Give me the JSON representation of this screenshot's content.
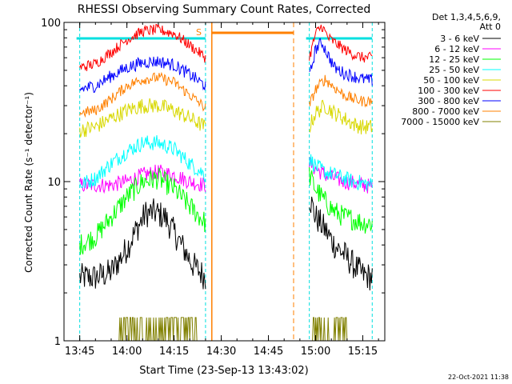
{
  "chart_data": {
    "type": "line",
    "title": "RHESSI Observing Summary Count Rates, Corrected",
    "xlabel": "Start Time (23-Sep-13 13:43:02)",
    "ylabel": "Corrected Count Rate (s⁻¹ detector⁻¹)",
    "y_scale": "log",
    "ylim": [
      1,
      100
    ],
    "xlim": [
      "13:40",
      "15:22"
    ],
    "x_ticks": [
      "13:45",
      "14:00",
      "14:15",
      "14:30",
      "14:45",
      "15:00",
      "15:15"
    ],
    "y_ticks": [
      "1",
      "10",
      "100"
    ],
    "legend_header": [
      "Det 1,3,4,5,6,9,",
      "Att 0"
    ],
    "legend_position": "top-right",
    "annotation_s": "S",
    "footer_date": "22-Oct-2021 11:38",
    "orbit_segments": [
      [
        "13:45",
        "14:25"
      ],
      [
        "14:58",
        "15:18"
      ]
    ],
    "series": [
      {
        "name": "3 - 6 keV",
        "color": "#000000",
        "x": [
          "13:45",
          "13:50",
          "13:55",
          "14:00",
          "14:03",
          "14:06",
          "14:09",
          "14:12",
          "14:15",
          "14:18",
          "14:21",
          "14:25",
          "14:58",
          "15:00",
          "15:03",
          "15:06",
          "15:09",
          "15:12",
          "15:15",
          "15:18"
        ],
        "y": [
          2.5,
          2.5,
          2.7,
          3.8,
          5,
          6.3,
          6.4,
          6,
          4.8,
          3.8,
          3,
          2.5,
          8,
          6,
          5,
          4,
          3.5,
          3,
          2.6,
          2.5
        ]
      },
      {
        "name": "6 - 12 keV",
        "color": "#ff00ff",
        "x": [
          "13:45",
          "13:55",
          "14:00",
          "14:05",
          "14:10",
          "14:15",
          "14:20",
          "14:25",
          "14:58",
          "15:00",
          "15:03",
          "15:06",
          "15:09",
          "15:12",
          "15:15",
          "15:18"
        ],
        "y": [
          9.5,
          9.5,
          10,
          11,
          11.5,
          11,
          10,
          9.5,
          13,
          12,
          11,
          10.5,
          10,
          9.8,
          9.5,
          9.3
        ]
      },
      {
        "name": "12 - 25 keV",
        "color": "#00ff00",
        "x": [
          "13:45",
          "13:50",
          "13:55",
          "14:00",
          "14:05",
          "14:10",
          "14:15",
          "14:20",
          "14:25",
          "14:58",
          "15:00",
          "15:03",
          "15:06",
          "15:09",
          "15:12",
          "15:15",
          "15:18"
        ],
        "y": [
          4,
          4.5,
          6,
          8,
          10,
          10.5,
          9,
          7,
          5.5,
          11,
          9,
          7.5,
          6.5,
          6,
          5.8,
          5.5,
          5.5
        ]
      },
      {
        "name": "25 - 50 keV",
        "color": "#00ffff",
        "x": [
          "13:45",
          "13:50",
          "13:55",
          "14:00",
          "14:05",
          "14:10",
          "14:15",
          "14:20",
          "14:25",
          "14:58",
          "15:00",
          "15:03",
          "15:06",
          "15:09",
          "15:12",
          "15:15",
          "15:18"
        ],
        "y": [
          9.5,
          10.5,
          13,
          15.5,
          17.5,
          17.5,
          16,
          13,
          11,
          14,
          12.5,
          11.5,
          11,
          10.5,
          10,
          9.8,
          9.5
        ]
      },
      {
        "name": "50 - 100 keV",
        "color": "#d8d800",
        "x": [
          "13:45",
          "13:50",
          "13:55",
          "14:00",
          "14:05",
          "14:10",
          "14:15",
          "14:20",
          "14:25",
          "14:58",
          "15:00",
          "15:03",
          "15:06",
          "15:09",
          "15:12",
          "15:15",
          "15:18"
        ],
        "y": [
          21,
          22,
          25,
          28,
          30,
          30,
          28,
          25,
          22,
          22,
          27,
          30,
          27,
          25,
          23,
          22,
          22
        ]
      },
      {
        "name": "100 - 300 keV",
        "color": "#ff0000",
        "x": [
          "13:45",
          "13:50",
          "13:55",
          "14:00",
          "14:05",
          "14:10",
          "14:15",
          "14:20",
          "14:25",
          "14:58",
          "15:00",
          "15:02",
          "15:04",
          "15:06",
          "15:09",
          "15:12",
          "15:15",
          "15:18"
        ],
        "y": [
          52,
          55,
          65,
          78,
          88,
          90,
          85,
          72,
          60,
          60,
          85,
          95,
          80,
          75,
          68,
          63,
          60,
          60
        ]
      },
      {
        "name": "300 - 800 keV",
        "color": "#0000ff",
        "x": [
          "13:45",
          "13:50",
          "13:55",
          "14:00",
          "14:05",
          "14:10",
          "14:15",
          "14:20",
          "14:25",
          "14:58",
          "15:00",
          "15:02",
          "15:04",
          "15:06",
          "15:09",
          "15:12",
          "15:15",
          "15:18"
        ],
        "y": [
          38,
          40,
          46,
          52,
          56,
          57,
          54,
          47,
          40,
          45,
          68,
          75,
          62,
          52,
          48,
          46,
          44,
          43
        ]
      },
      {
        "name": "800 - 7000 keV",
        "color": "#ff8000",
        "x": [
          "13:45",
          "13:50",
          "13:55",
          "14:00",
          "14:05",
          "14:10",
          "14:15",
          "14:20",
          "14:25",
          "14:58",
          "15:00",
          "15:03",
          "15:06",
          "15:09",
          "15:12",
          "15:15",
          "15:18"
        ],
        "y": [
          27,
          28,
          33,
          40,
          44,
          45,
          42,
          35,
          29,
          30,
          38,
          44,
          39,
          35,
          33,
          32,
          32
        ]
      },
      {
        "name": "7000 - 15000 keV",
        "color": "#808000",
        "x": [
          "13:45",
          "13:50",
          "13:55",
          "14:00",
          "14:05",
          "14:10",
          "14:15",
          "14:20",
          "14:25",
          "14:58",
          "15:00",
          "15:03",
          "15:06",
          "15:09",
          "15:12",
          "15:15",
          "15:18"
        ],
        "y": [
          1,
          1,
          1,
          1.4,
          1.4,
          1.4,
          1.4,
          1.4,
          1,
          1,
          1.4,
          1.4,
          1.4,
          1.4,
          1,
          1,
          1
        ]
      }
    ]
  }
}
